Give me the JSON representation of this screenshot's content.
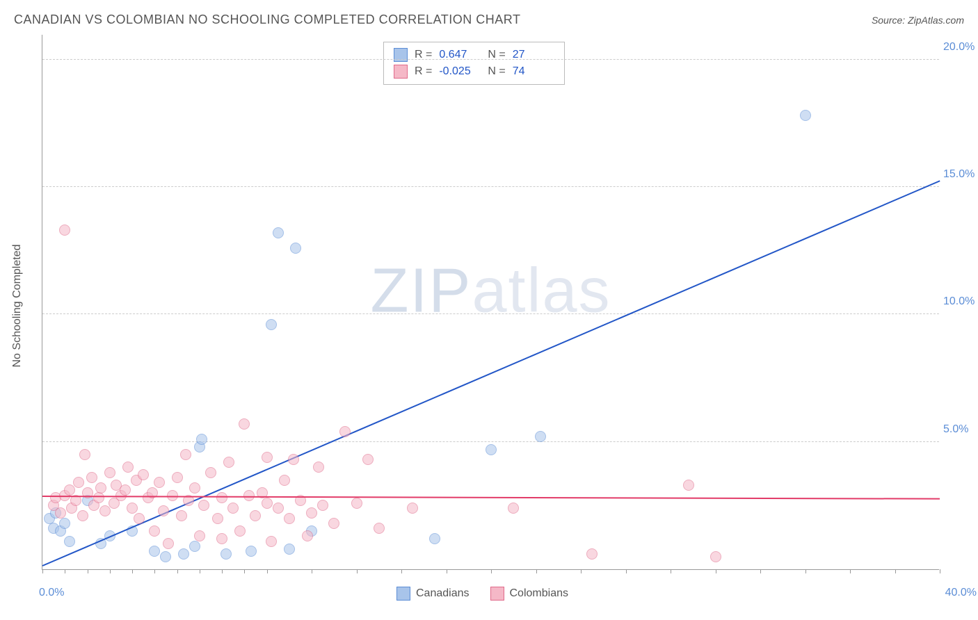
{
  "title": "CANADIAN VS COLOMBIAN NO SCHOOLING COMPLETED CORRELATION CHART",
  "source": "Source: ZipAtlas.com",
  "ylabel": "No Schooling Completed",
  "watermark": {
    "zip": "ZIP",
    "atlas": "atlas"
  },
  "chart": {
    "type": "scatter",
    "xlim": [
      0,
      40
    ],
    "ylim": [
      0,
      21
    ],
    "x_label_min": "0.0%",
    "x_label_max": "40.0%",
    "y_ticks": [
      {
        "v": 5,
        "label": "5.0%"
      },
      {
        "v": 10,
        "label": "10.0%"
      },
      {
        "v": 15,
        "label": "15.0%"
      },
      {
        "v": 20,
        "label": "20.0%"
      }
    ],
    "x_tick_positions": [
      0,
      1,
      2,
      3,
      4,
      5,
      6,
      7,
      8,
      9,
      10,
      12,
      14,
      16,
      18,
      20,
      22,
      24,
      26,
      28,
      30,
      32,
      34,
      36,
      38,
      40
    ],
    "grid_color": "#cccccc",
    "axis_color": "#999999",
    "background": "#ffffff",
    "marker_radius": 8,
    "marker_opacity": 0.55,
    "series": [
      {
        "id": "canadians",
        "label": "Canadians",
        "fill": "#a8c4ea",
        "stroke": "#5b8dd6",
        "r_value": "0.647",
        "n_value": "27",
        "trend": {
          "x1": 0,
          "y1": 0.1,
          "x2": 40,
          "y2": 15.2,
          "color": "#2256c7",
          "width": 2
        },
        "points": [
          [
            0.3,
            2.0
          ],
          [
            0.5,
            1.6
          ],
          [
            0.6,
            2.2
          ],
          [
            0.8,
            1.5
          ],
          [
            1.0,
            1.8
          ],
          [
            1.2,
            1.1
          ],
          [
            2.0,
            2.7
          ],
          [
            2.6,
            1.0
          ],
          [
            3.0,
            1.3
          ],
          [
            4.0,
            1.5
          ],
          [
            5.0,
            0.7
          ],
          [
            5.5,
            0.5
          ],
          [
            6.3,
            0.6
          ],
          [
            6.8,
            0.9
          ],
          [
            7.0,
            4.8
          ],
          [
            7.1,
            5.1
          ],
          [
            8.2,
            0.6
          ],
          [
            9.3,
            0.7
          ],
          [
            10.5,
            13.2
          ],
          [
            10.2,
            9.6
          ],
          [
            11.3,
            12.6
          ],
          [
            11.0,
            0.8
          ],
          [
            12.0,
            1.5
          ],
          [
            17.5,
            1.2
          ],
          [
            20.0,
            4.7
          ],
          [
            22.2,
            5.2
          ],
          [
            34.0,
            17.8
          ]
        ]
      },
      {
        "id": "colombians",
        "label": "Colombians",
        "fill": "#f5b8c7",
        "stroke": "#e06a8a",
        "r_value": "-0.025",
        "n_value": "74",
        "trend": {
          "x1": 0,
          "y1": 2.85,
          "x2": 40,
          "y2": 2.75,
          "color": "#e23b68",
          "width": 2
        },
        "points": [
          [
            0.5,
            2.5
          ],
          [
            0.6,
            2.8
          ],
          [
            0.8,
            2.2
          ],
          [
            1.0,
            2.9
          ],
          [
            1.0,
            13.3
          ],
          [
            1.2,
            3.1
          ],
          [
            1.3,
            2.4
          ],
          [
            1.5,
            2.7
          ],
          [
            1.6,
            3.4
          ],
          [
            1.8,
            2.1
          ],
          [
            1.9,
            4.5
          ],
          [
            2.0,
            3.0
          ],
          [
            2.2,
            3.6
          ],
          [
            2.3,
            2.5
          ],
          [
            2.5,
            2.8
          ],
          [
            2.6,
            3.2
          ],
          [
            2.8,
            2.3
          ],
          [
            3.0,
            3.8
          ],
          [
            3.2,
            2.6
          ],
          [
            3.3,
            3.3
          ],
          [
            3.5,
            2.9
          ],
          [
            3.7,
            3.1
          ],
          [
            3.8,
            4.0
          ],
          [
            4.0,
            2.4
          ],
          [
            4.2,
            3.5
          ],
          [
            4.3,
            2.0
          ],
          [
            4.5,
            3.7
          ],
          [
            4.7,
            2.8
          ],
          [
            4.9,
            3.0
          ],
          [
            5.0,
            1.5
          ],
          [
            5.2,
            3.4
          ],
          [
            5.4,
            2.3
          ],
          [
            5.6,
            1.0
          ],
          [
            5.8,
            2.9
          ],
          [
            6.0,
            3.6
          ],
          [
            6.2,
            2.1
          ],
          [
            6.4,
            4.5
          ],
          [
            6.5,
            2.7
          ],
          [
            6.8,
            3.2
          ],
          [
            7.0,
            1.3
          ],
          [
            7.2,
            2.5
          ],
          [
            7.5,
            3.8
          ],
          [
            7.8,
            2.0
          ],
          [
            8.0,
            2.8
          ],
          [
            8.0,
            1.2
          ],
          [
            8.3,
            4.2
          ],
          [
            8.5,
            2.4
          ],
          [
            8.8,
            1.5
          ],
          [
            9.0,
            5.7
          ],
          [
            9.2,
            2.9
          ],
          [
            9.5,
            2.1
          ],
          [
            9.8,
            3.0
          ],
          [
            10.0,
            4.4
          ],
          [
            10.0,
            2.6
          ],
          [
            10.2,
            1.1
          ],
          [
            10.5,
            2.4
          ],
          [
            10.8,
            3.5
          ],
          [
            11.0,
            2.0
          ],
          [
            11.2,
            4.3
          ],
          [
            11.5,
            2.7
          ],
          [
            11.8,
            1.3
          ],
          [
            12.0,
            2.2
          ],
          [
            12.3,
            4.0
          ],
          [
            12.5,
            2.5
          ],
          [
            13.0,
            1.8
          ],
          [
            13.5,
            5.4
          ],
          [
            14.0,
            2.6
          ],
          [
            14.5,
            4.3
          ],
          [
            15.0,
            1.6
          ],
          [
            16.5,
            2.4
          ],
          [
            21.0,
            2.4
          ],
          [
            24.5,
            0.6
          ],
          [
            28.8,
            3.3
          ],
          [
            30.0,
            0.5
          ]
        ]
      }
    ]
  },
  "stats_box": {
    "r_label": "R =",
    "n_label": "N ="
  },
  "legend": {
    "items": [
      "Canadians",
      "Colombians"
    ]
  }
}
